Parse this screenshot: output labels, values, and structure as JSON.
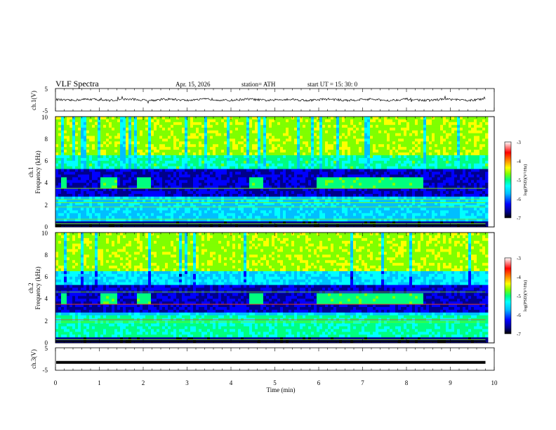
{
  "header": {
    "title": "VLF  Spectra",
    "date": "Apr. 15, 2026",
    "station": "station= ATH",
    "start": "start  UT  =   15: 30: 0"
  },
  "chart_data": [
    {
      "type": "line",
      "panel": "ch1-waveform",
      "ylabel": "ch.1(V)",
      "ylim": [
        -5,
        5
      ],
      "ytick_labels": [
        "5",
        "-5"
      ],
      "xlim": [
        0,
        10
      ],
      "x_data_end": 9.8,
      "baseline": 0,
      "amplitude_note_range": [
        -1.5,
        1.5
      ],
      "color": "#000000"
    },
    {
      "type": "heatmap",
      "panel": "ch1-spectrogram",
      "ylabel": "ch.1\nFrequency  (kHz)",
      "ylabel_lines": [
        "ch.1",
        "Frequency  (kHz)"
      ],
      "ylim": [
        0,
        10
      ],
      "ytick_labels": [
        "0",
        "2",
        "4",
        "6",
        "8",
        "10"
      ],
      "xlim": [
        0,
        10
      ],
      "x_data_end": 9.8,
      "blocks_min": [
        [
          0.1,
          0.25
        ],
        [
          1.0,
          1.35
        ],
        [
          1.8,
          2.15
        ],
        [
          4.4,
          4.7
        ],
        [
          5.95,
          8.35
        ]
      ],
      "block_freq_khz": [
        3.4,
        4.6
      ],
      "colorbar": {
        "label": "log(PSD)(V²/Hz)",
        "range": [
          -7,
          -3
        ],
        "tick_labels": [
          "-3",
          "-4",
          "-5",
          "-6",
          "-7"
        ]
      }
    },
    {
      "type": "heatmap",
      "panel": "ch2-spectrogram",
      "ylabel": "ch.2\nFrequency  (kHz)",
      "ylabel_lines": [
        "ch.2",
        "Frequency  (kHz)"
      ],
      "ylim": [
        0,
        10
      ],
      "ytick_labels": [
        "0",
        "2",
        "4",
        "6",
        "8",
        "10"
      ],
      "xlim": [
        0,
        10
      ],
      "x_data_end": 9.8,
      "blocks_min": [
        [
          0.1,
          0.25
        ],
        [
          1.0,
          1.35
        ],
        [
          1.8,
          2.15
        ],
        [
          4.4,
          4.7
        ],
        [
          5.95,
          8.35
        ]
      ],
      "block_freq_khz": [
        3.6,
        4.6
      ],
      "colorbar": {
        "label": "log(PSD)(V²/Hz)",
        "range": [
          -7,
          -3
        ],
        "tick_labels": [
          "-3",
          "-4",
          "-5",
          "-6",
          "-7"
        ]
      }
    },
    {
      "type": "line",
      "panel": "ch3-waveform",
      "ylabel": "ch.3(V)",
      "ylim": [
        -5,
        5
      ],
      "ytick_labels": [
        "5",
        "-5"
      ],
      "xlim": [
        0,
        10
      ],
      "x_data_end": 9.8,
      "baseline": -1.5,
      "color": "#000000"
    }
  ],
  "xaxis": {
    "label": "Time  (min)",
    "ticks": [
      "0",
      "1",
      "2",
      "3",
      "4",
      "5",
      "6",
      "7",
      "8",
      "9",
      "10"
    ]
  },
  "colormap": [
    "#000000",
    "#00008b",
    "#0000ff",
    "#00bfff",
    "#00ffff",
    "#00ff7f",
    "#7fff00",
    "#ffff00",
    "#ff7f00",
    "#ff0000",
    "#ffffff"
  ]
}
